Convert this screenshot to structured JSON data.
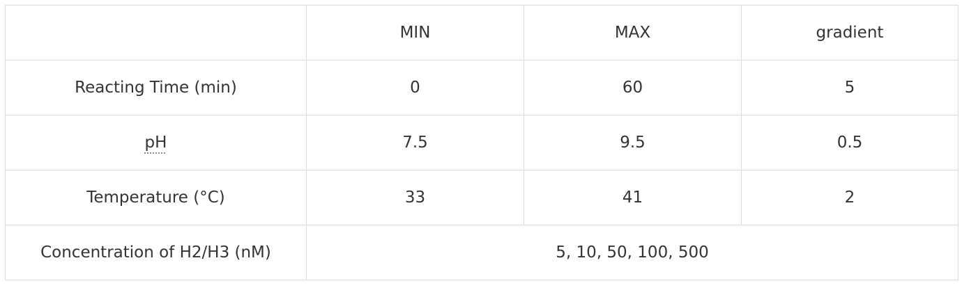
{
  "table": {
    "header": [
      "",
      "MIN",
      "MAX",
      "gradient"
    ],
    "rows": [
      {
        "label": "Reacting Time (min)",
        "min": "0",
        "max": "60",
        "gradient": "5"
      },
      {
        "label": "pH",
        "min": "7.5",
        "max": "9.5",
        "gradient": "0.5"
      },
      {
        "label": "Temperature (°C)",
        "min": "33",
        "max": "41",
        "gradient": "2"
      }
    ],
    "concentration": {
      "label": "Concentration of H2/H3 (nM)",
      "values": "5, 10, 50, 100, 500"
    }
  }
}
